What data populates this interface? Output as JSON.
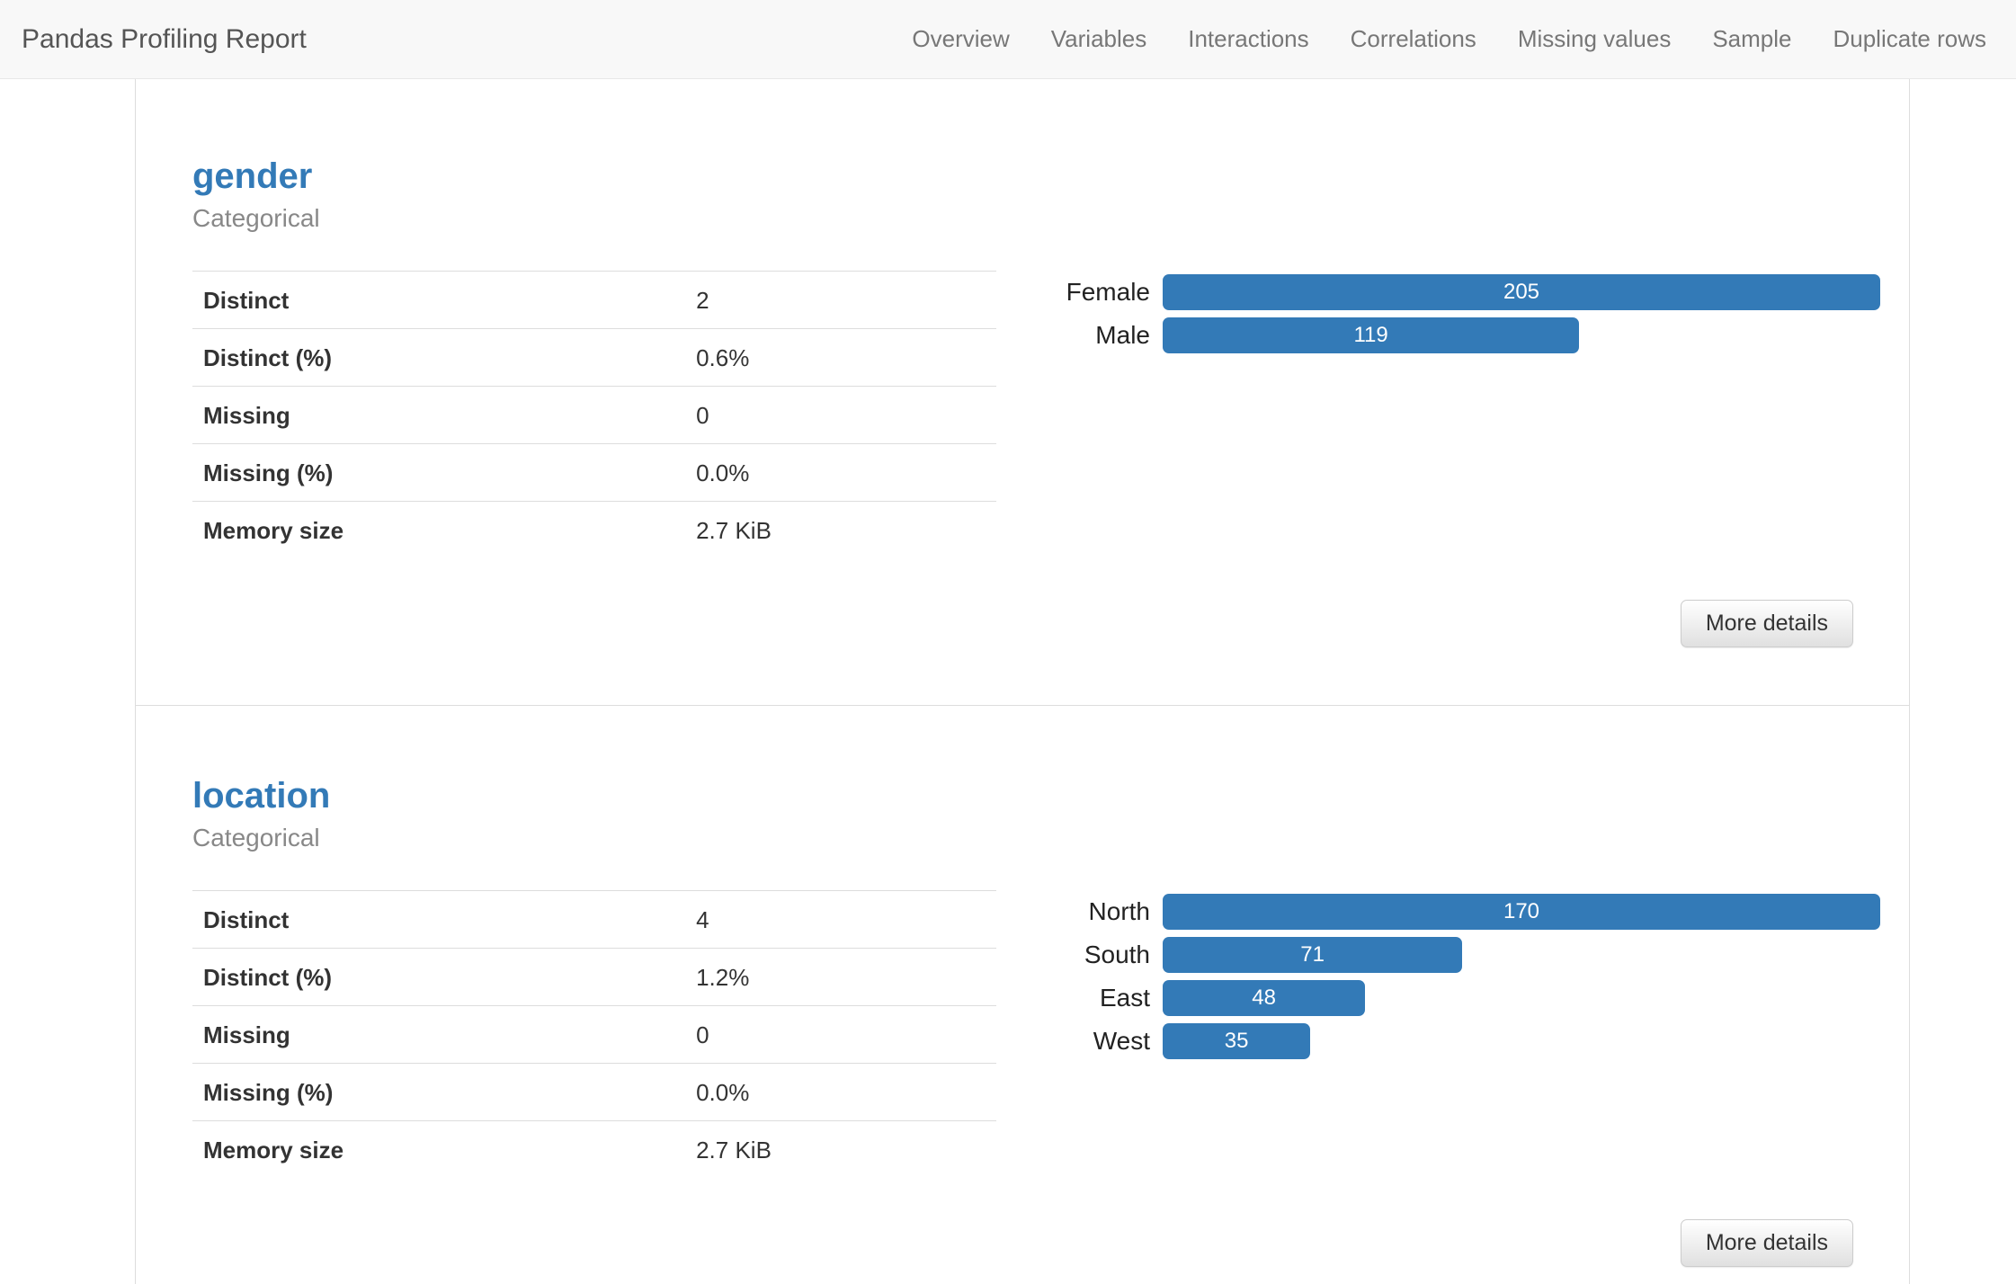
{
  "navbar": {
    "brand": "Pandas Profiling Report",
    "items": [
      "Overview",
      "Variables",
      "Interactions",
      "Correlations",
      "Missing values",
      "Sample",
      "Duplicate rows"
    ]
  },
  "colors": {
    "accent": "#337ab7"
  },
  "sections": [
    {
      "title": "gender",
      "type": "Categorical",
      "stats": [
        {
          "label": "Distinct",
          "value": "2"
        },
        {
          "label": "Distinct (%)",
          "value": "0.6%"
        },
        {
          "label": "Missing",
          "value": "0"
        },
        {
          "label": "Missing (%)",
          "value": "0.0%"
        },
        {
          "label": "Memory size",
          "value": "2.7 KiB"
        }
      ],
      "chart": {
        "type": "bar",
        "categories": [
          "Female",
          "Male"
        ],
        "values": [
          205,
          119
        ]
      },
      "more_details_label": "More details"
    },
    {
      "title": "location",
      "type": "Categorical",
      "stats": [
        {
          "label": "Distinct",
          "value": "4"
        },
        {
          "label": "Distinct (%)",
          "value": "1.2%"
        },
        {
          "label": "Missing",
          "value": "0"
        },
        {
          "label": "Missing (%)",
          "value": "0.0%"
        },
        {
          "label": "Memory size",
          "value": "2.7 KiB"
        }
      ],
      "chart": {
        "type": "bar",
        "categories": [
          "North",
          "South",
          "East",
          "West"
        ],
        "values": [
          170,
          71,
          48,
          35
        ]
      },
      "more_details_label": "More details"
    }
  ]
}
